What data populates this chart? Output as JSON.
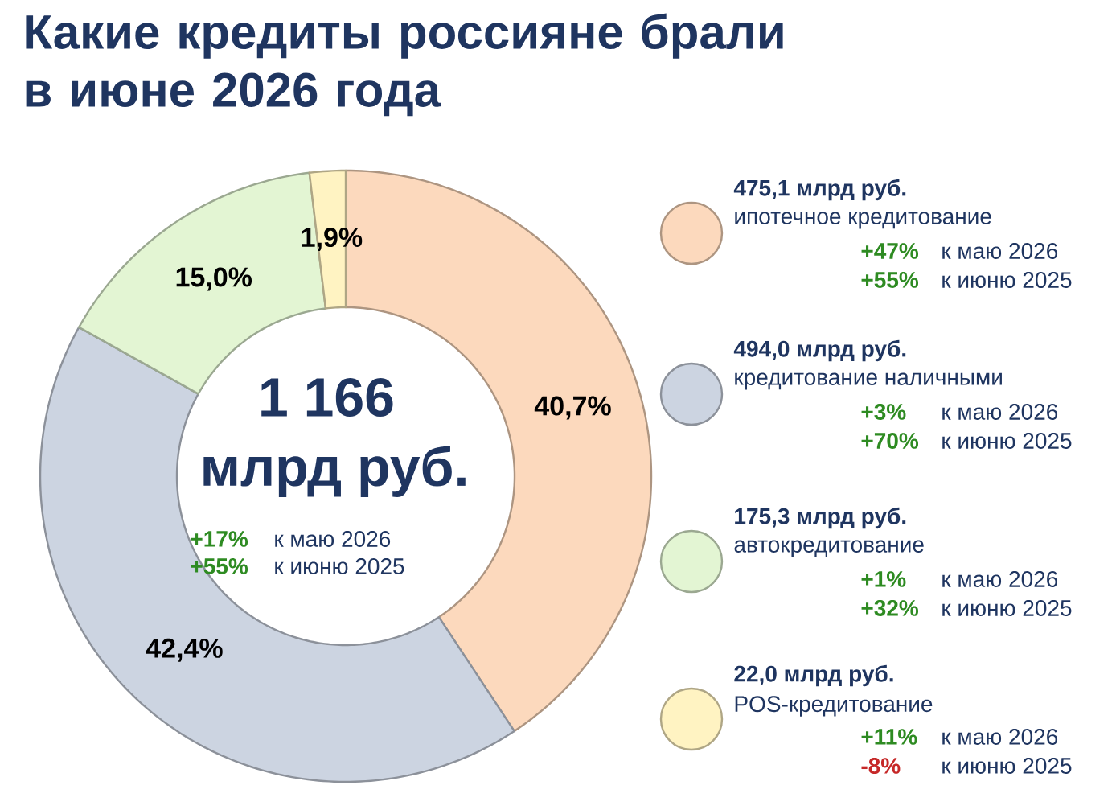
{
  "chart_data": {
    "type": "donut",
    "title": "Какие кредиты россияне брали в июне 2026 года",
    "categories": [
      "ипотечное кредитование",
      "кредитование наличными",
      "автокредитование",
      "POS-кредитование"
    ],
    "values": [
      40.7,
      42.4,
      15.0,
      1.9
    ],
    "value_labels": [
      "40,7%",
      "42,4%",
      "15,0%",
      "1,9%"
    ],
    "colors": [
      "#fcd9bd",
      "#ccd4e1",
      "#e3f5d3",
      "#fff3c2"
    ],
    "legend": "right",
    "annotations": [
      "1 166",
      "млрд руб.",
      "+17%",
      "к маю 2026",
      "+55%",
      "к июню 2025",
      "475,1 млрд руб.",
      "+47%",
      "к маю 2026",
      "+55%",
      "к июню 2025",
      "494,0 млрд руб.",
      "+3%",
      "к маю 2026",
      "+70%",
      "к июню 2025",
      "175,3 млрд руб.",
      "+1%",
      "к маю 2026",
      "+32%",
      "к июню 2025",
      "22,0 млрд руб.",
      "+11%",
      "к маю 2026",
      "-8%",
      "к июню 2025"
    ]
  }
}
